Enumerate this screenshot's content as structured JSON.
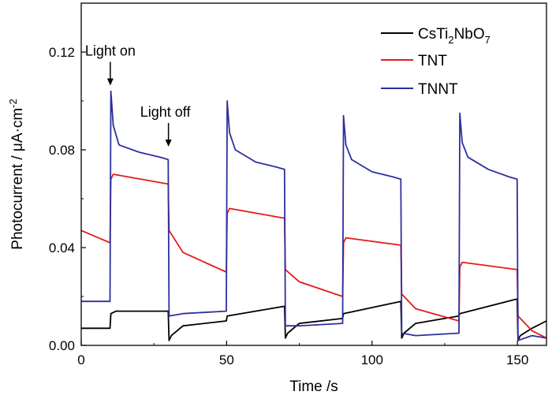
{
  "chart_data": {
    "type": "line",
    "xlabel": "Time /s",
    "ylabel": "Photocurrent / μA·cm",
    "ylabel_superscript": "-2",
    "xlim": [
      0,
      160
    ],
    "ylim": [
      0,
      0.14
    ],
    "x_ticks": [
      0,
      50,
      100,
      150
    ],
    "x_tick_labels": [
      "0",
      "50",
      "100",
      "150"
    ],
    "y_ticks": [
      0.0,
      0.04,
      0.08,
      0.12
    ],
    "y_tick_labels": [
      "0.00",
      "0.04",
      "0.08",
      "0.12"
    ],
    "grid": false,
    "legend_position": "top-right",
    "annotations": [
      {
        "text": "Light on",
        "x": 10,
        "y": 0.105
      },
      {
        "text": "Light off",
        "x": 30,
        "y": 0.08
      }
    ],
    "series": [
      {
        "name": "CsTi2NbO7",
        "legend_parts": [
          "CsTi",
          "2",
          "NbO",
          "7"
        ],
        "color": "#000000",
        "x": [
          0,
          9.9,
          10.2,
          12,
          29.9,
          30.2,
          31,
          35,
          49.9,
          50.2,
          69.9,
          70.2,
          71,
          75,
          89.9,
          90.2,
          109.9,
          110.2,
          111,
          115,
          129.9,
          130.2,
          149.9,
          150.2,
          151,
          155,
          160
        ],
        "values": [
          0.007,
          0.007,
          0.013,
          0.014,
          0.014,
          0.002,
          0.004,
          0.008,
          0.01,
          0.012,
          0.016,
          0.003,
          0.005,
          0.009,
          0.011,
          0.013,
          0.018,
          0.003,
          0.005,
          0.009,
          0.012,
          0.013,
          0.019,
          0.002,
          0.004,
          0.007,
          0.01
        ]
      },
      {
        "name": "TNT",
        "color": "#e41a1c",
        "x": [
          0,
          9.9,
          10.2,
          11,
          29.9,
          30.2,
          35,
          49.9,
          50.2,
          51,
          69.9,
          70.2,
          75,
          89.9,
          90.2,
          91,
          109.9,
          110.2,
          115,
          129.9,
          130.2,
          131,
          149.9,
          150.2,
          155,
          160
        ],
        "values": [
          0.047,
          0.042,
          0.068,
          0.07,
          0.066,
          0.047,
          0.038,
          0.03,
          0.054,
          0.056,
          0.052,
          0.031,
          0.026,
          0.02,
          0.042,
          0.044,
          0.041,
          0.021,
          0.015,
          0.01,
          0.032,
          0.034,
          0.031,
          0.012,
          0.006,
          0.003
        ]
      },
      {
        "name": "TNNT",
        "color": "#2d2f9e",
        "x": [
          0,
          9.9,
          10.2,
          11,
          13,
          20,
          27,
          29.9,
          30.2,
          35,
          49.9,
          50.2,
          51,
          53,
          60,
          67,
          69.9,
          70.2,
          75,
          89.9,
          90.2,
          91,
          93,
          100,
          107,
          109.9,
          110.2,
          115,
          129.9,
          130.2,
          131,
          133,
          140,
          147,
          149.9,
          150.2,
          155,
          160
        ],
        "values": [
          0.018,
          0.018,
          0.104,
          0.09,
          0.082,
          0.079,
          0.077,
          0.076,
          0.012,
          0.013,
          0.014,
          0.1,
          0.087,
          0.08,
          0.075,
          0.073,
          0.072,
          0.008,
          0.008,
          0.009,
          0.094,
          0.082,
          0.076,
          0.071,
          0.069,
          0.068,
          0.005,
          0.004,
          0.005,
          0.095,
          0.083,
          0.077,
          0.072,
          0.069,
          0.068,
          0.002,
          0.004,
          0.003
        ]
      }
    ]
  }
}
